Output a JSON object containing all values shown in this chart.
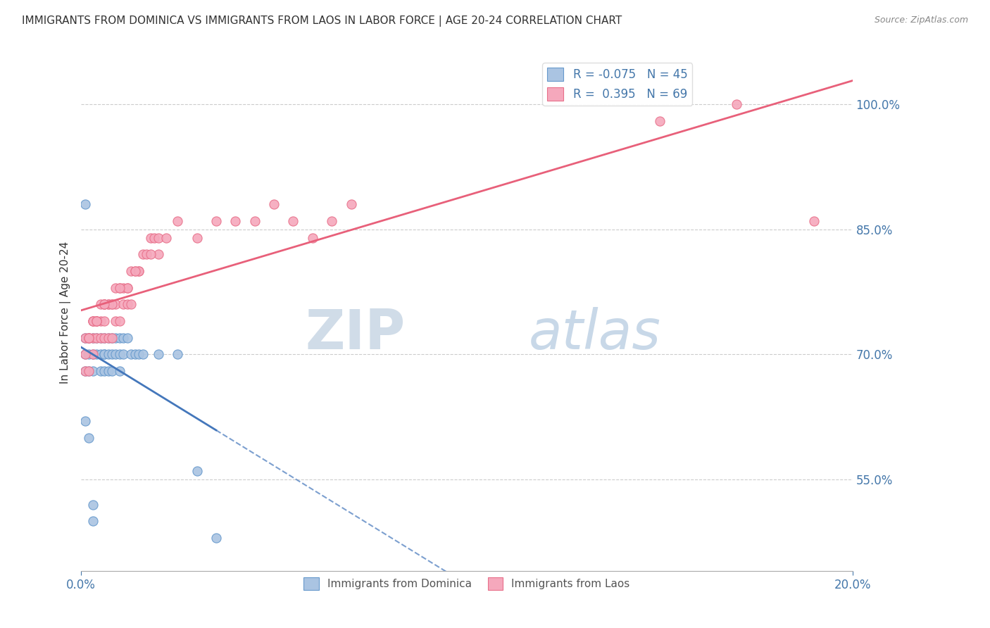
{
  "title": "IMMIGRANTS FROM DOMINICA VS IMMIGRANTS FROM LAOS IN LABOR FORCE | AGE 20-24 CORRELATION CHART",
  "source": "Source: ZipAtlas.com",
  "ylabel": "In Labor Force | Age 20-24",
  "yticks": [
    0.55,
    0.7,
    0.85,
    1.0
  ],
  "ytick_labels": [
    "55.0%",
    "70.0%",
    "85.0%",
    "100.0%"
  ],
  "xlim": [
    0.0,
    0.2
  ],
  "ylim": [
    0.44,
    1.06
  ],
  "dominica_color": "#aac4e2",
  "laos_color": "#f5a8bc",
  "dominica_edge_color": "#6699cc",
  "laos_edge_color": "#e8708a",
  "dominica_line_color": "#4477bb",
  "laos_line_color": "#e8607a",
  "watermark_zip": "ZIP",
  "watermark_atlas": "atlas",
  "dominica_x": [
    0.001,
    0.001,
    0.001,
    0.002,
    0.002,
    0.002,
    0.003,
    0.003,
    0.003,
    0.004,
    0.004,
    0.005,
    0.005,
    0.005,
    0.006,
    0.006,
    0.006,
    0.006,
    0.007,
    0.007,
    0.007,
    0.008,
    0.008,
    0.008,
    0.009,
    0.009,
    0.01,
    0.01,
    0.01,
    0.011,
    0.011,
    0.012,
    0.013,
    0.014,
    0.015,
    0.016,
    0.02,
    0.025,
    0.03,
    0.035,
    0.001,
    0.001,
    0.002,
    0.003,
    0.003
  ],
  "dominica_y": [
    0.72,
    0.68,
    0.7,
    0.72,
    0.68,
    0.7,
    0.72,
    0.68,
    0.7,
    0.72,
    0.7,
    0.72,
    0.68,
    0.7,
    0.72,
    0.7,
    0.68,
    0.7,
    0.72,
    0.7,
    0.68,
    0.72,
    0.7,
    0.68,
    0.72,
    0.7,
    0.72,
    0.7,
    0.68,
    0.72,
    0.7,
    0.72,
    0.7,
    0.7,
    0.7,
    0.7,
    0.7,
    0.7,
    0.56,
    0.48,
    0.88,
    0.62,
    0.6,
    0.5,
    0.52
  ],
  "laos_x": [
    0.001,
    0.001,
    0.002,
    0.002,
    0.003,
    0.003,
    0.003,
    0.004,
    0.004,
    0.005,
    0.005,
    0.006,
    0.006,
    0.006,
    0.007,
    0.007,
    0.008,
    0.008,
    0.009,
    0.009,
    0.01,
    0.01,
    0.011,
    0.011,
    0.012,
    0.012,
    0.013,
    0.013,
    0.014,
    0.015,
    0.016,
    0.017,
    0.018,
    0.019,
    0.02,
    0.025,
    0.03,
    0.035,
    0.04,
    0.045,
    0.05,
    0.055,
    0.06,
    0.065,
    0.07,
    0.002,
    0.003,
    0.004,
    0.005,
    0.007,
    0.009,
    0.012,
    0.015,
    0.02,
    0.001,
    0.003,
    0.004,
    0.006,
    0.008,
    0.01,
    0.014,
    0.018,
    0.022,
    0.002,
    0.004,
    0.006,
    0.15,
    0.17,
    0.19
  ],
  "laos_y": [
    0.72,
    0.68,
    0.72,
    0.68,
    0.74,
    0.72,
    0.7,
    0.74,
    0.72,
    0.74,
    0.72,
    0.76,
    0.72,
    0.74,
    0.76,
    0.72,
    0.76,
    0.72,
    0.76,
    0.74,
    0.78,
    0.74,
    0.78,
    0.76,
    0.78,
    0.76,
    0.8,
    0.76,
    0.8,
    0.8,
    0.82,
    0.82,
    0.84,
    0.84,
    0.84,
    0.86,
    0.84,
    0.86,
    0.86,
    0.86,
    0.88,
    0.86,
    0.84,
    0.86,
    0.88,
    0.72,
    0.74,
    0.74,
    0.76,
    0.76,
    0.78,
    0.78,
    0.8,
    0.82,
    0.7,
    0.74,
    0.74,
    0.76,
    0.76,
    0.78,
    0.8,
    0.82,
    0.84,
    0.72,
    0.74,
    0.76,
    0.98,
    1.0,
    0.86
  ]
}
